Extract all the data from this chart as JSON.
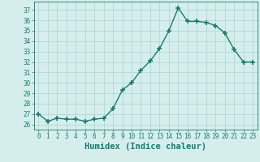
{
  "x": [
    0,
    1,
    2,
    3,
    4,
    5,
    6,
    7,
    8,
    9,
    10,
    11,
    12,
    13,
    14,
    15,
    16,
    17,
    18,
    19,
    20,
    21,
    22,
    23
  ],
  "y": [
    27,
    26.3,
    26.6,
    26.5,
    26.5,
    26.3,
    26.5,
    26.6,
    27.5,
    29.3,
    30.0,
    31.2,
    32.1,
    33.3,
    35.0,
    37.2,
    35.9,
    35.9,
    35.8,
    35.5,
    34.8,
    33.2,
    32.0,
    32.0
  ],
  "line_color": "#1a7a6e",
  "marker": "+",
  "marker_size": 4,
  "bg_color": "#d5eeec",
  "grid_color": "#b0d8d5",
  "xlabel": "Humidex (Indice chaleur)",
  "ylim": [
    25.5,
    37.8
  ],
  "xlim": [
    -0.5,
    23.5
  ],
  "yticks": [
    26,
    27,
    28,
    29,
    30,
    31,
    32,
    33,
    34,
    35,
    36,
    37
  ],
  "xticks": [
    0,
    1,
    2,
    3,
    4,
    5,
    6,
    7,
    8,
    9,
    10,
    11,
    12,
    13,
    14,
    15,
    16,
    17,
    18,
    19,
    20,
    21,
    22,
    23
  ],
  "tick_label_fontsize": 5.5,
  "xlabel_fontsize": 7.5,
  "line_width": 1.0
}
